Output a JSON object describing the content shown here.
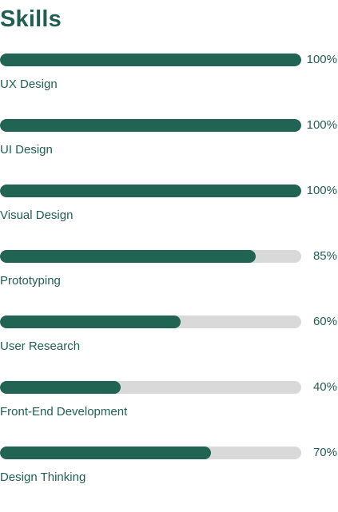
{
  "title": "Skills",
  "skills": [
    {
      "name": "UX Design",
      "percent_label": "100%",
      "level": 1.0
    },
    {
      "name": "UI Design",
      "percent_label": "100%",
      "level": 1.0
    },
    {
      "name": "Visual Design",
      "percent_label": "100%",
      "level": 1.0
    },
    {
      "name": "Prototyping",
      "percent_label": "85%",
      "level": 0.85
    },
    {
      "name": "User Research",
      "percent_label": "60%",
      "level": 0.6
    },
    {
      "name": "Front-End Development",
      "percent_label": "40%",
      "level": 0.4
    },
    {
      "name": "Design Thinking",
      "percent_label": "70%",
      "level": 0.7
    }
  ],
  "colors": {
    "accent": "#226454",
    "track": "#d9d9d9",
    "text": "#1f5f52"
  }
}
